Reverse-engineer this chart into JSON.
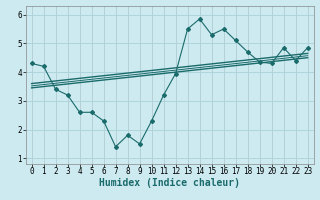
{
  "x_main": [
    0,
    1,
    2,
    3,
    4,
    5,
    6,
    7,
    8,
    9,
    10,
    11,
    12,
    13,
    14,
    15,
    16,
    17,
    18,
    19,
    20,
    21,
    22,
    23
  ],
  "y_main": [
    4.3,
    4.2,
    3.4,
    3.2,
    2.6,
    2.6,
    2.3,
    1.4,
    1.8,
    1.5,
    2.3,
    3.2,
    3.95,
    5.5,
    5.85,
    5.3,
    5.5,
    5.1,
    4.7,
    4.35,
    4.3,
    4.85,
    4.4,
    4.85
  ],
  "trend1_x": [
    0,
    23
  ],
  "trend1_y": [
    3.45,
    4.5
  ],
  "trend2_x": [
    0,
    23
  ],
  "trend2_y": [
    3.6,
    4.65
  ],
  "trend3_x": [
    0,
    23
  ],
  "trend3_y": [
    3.52,
    4.57
  ],
  "xlim": [
    -0.5,
    23.5
  ],
  "ylim": [
    0.8,
    6.3
  ],
  "yticks": [
    1,
    2,
    3,
    4,
    5,
    6
  ],
  "xticks": [
    0,
    1,
    2,
    3,
    4,
    5,
    6,
    7,
    8,
    9,
    10,
    11,
    12,
    13,
    14,
    15,
    16,
    17,
    18,
    19,
    20,
    21,
    22,
    23
  ],
  "xlabel": "Humidex (Indice chaleur)",
  "bg_color": "#cdeaf0",
  "grid_color": "#aed4dc",
  "line_color": "#1a6b6b",
  "tick_fontsize": 5.5,
  "label_fontsize": 7
}
